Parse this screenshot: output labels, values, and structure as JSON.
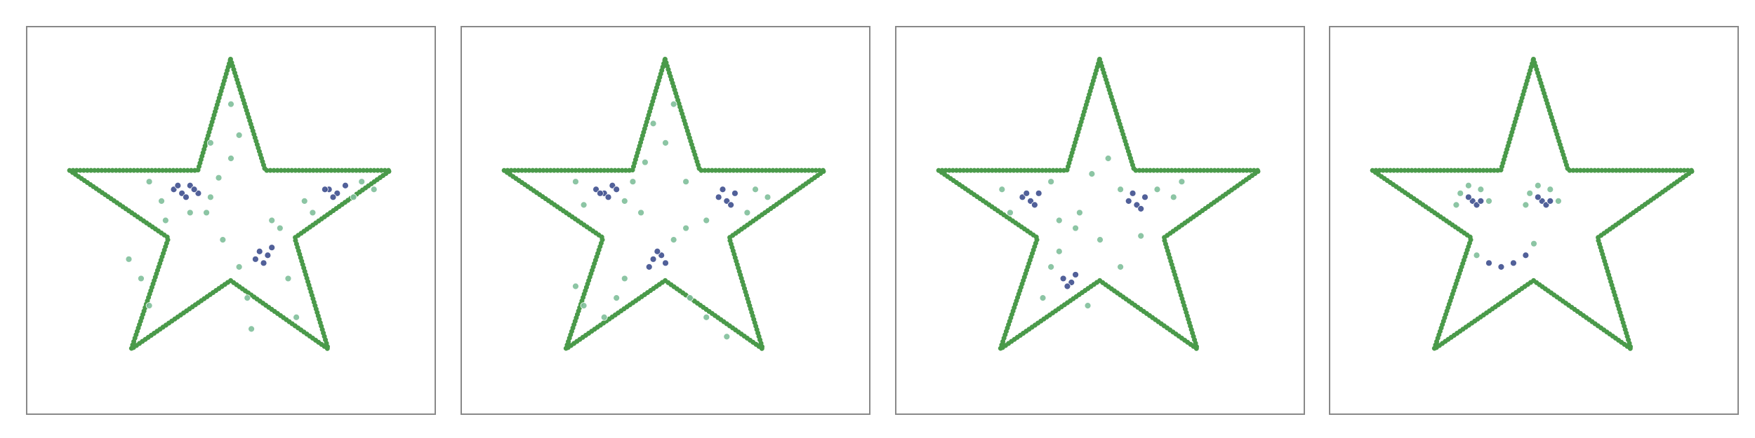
{
  "chart_data": [
    {
      "type": "scatter",
      "xlim": [
        0,
        100
      ],
      "ylim": [
        0,
        100
      ],
      "outline": {
        "color": "#4a9a4a",
        "x": [
          49.9,
          58.4,
          89,
          65.6,
          73.8,
          49.9,
          25.6,
          34.7,
          10.5,
          41.9
        ],
        "y": [
          91.6,
          62.9,
          62.9,
          45.5,
          16.8,
          34.5,
          16.8,
          45.5,
          62.9,
          62.9
        ]
      },
      "series": [
        {
          "color": "#7fbf9a",
          "x": [
            30,
            33,
            45,
            47,
            44,
            34,
            50,
            52,
            68,
            82,
            85,
            70,
            80,
            62,
            64,
            52,
            54,
            48,
            55,
            30,
            28,
            25,
            66,
            60,
            45,
            40,
            50
          ],
          "y": [
            60,
            55,
            56,
            61,
            52,
            50,
            66,
            72,
            55,
            60,
            58,
            52,
            56,
            48,
            35,
            38,
            30,
            45,
            22,
            28,
            35,
            40,
            25,
            50,
            70,
            52,
            80
          ]
        },
        {
          "color": "#3e4f8e",
          "x": [
            36,
            38,
            40,
            42,
            39,
            37,
            41,
            74,
            76,
            78,
            75,
            73,
            57,
            59,
            56,
            60,
            58
          ],
          "y": [
            58,
            57,
            59,
            57,
            56,
            59,
            58,
            58,
            57,
            59,
            56,
            58,
            42,
            41,
            40,
            43,
            39
          ]
        }
      ]
    },
    {
      "type": "scatter",
      "xlim": [
        0,
        100
      ],
      "ylim": [
        0,
        100
      ],
      "outline": {
        "color": "#4a9a4a",
        "x": [
          49.9,
          58.4,
          89,
          65.6,
          73.8,
          49.9,
          25.6,
          34.7,
          10.5,
          41.9
        ],
        "y": [
          91.6,
          62.9,
          62.9,
          45.5,
          16.8,
          34.5,
          16.8,
          45.5,
          62.9,
          62.9
        ]
      },
      "series": [
        {
          "color": "#7fbf9a",
          "x": [
            28,
            30,
            40,
            42,
            44,
            45,
            50,
            52,
            55,
            72,
            75,
            60,
            70,
            56,
            40,
            38,
            35,
            30,
            28,
            52,
            60,
            65,
            55,
            47
          ],
          "y": [
            60,
            54,
            55,
            60,
            52,
            65,
            70,
            80,
            60,
            58,
            56,
            50,
            52,
            30,
            35,
            30,
            25,
            28,
            33,
            45,
            25,
            20,
            48,
            75
          ]
        },
        {
          "color": "#3e4f8e",
          "x": [
            33,
            35,
            37,
            36,
            34,
            38,
            63,
            65,
            67,
            64,
            66,
            47,
            49,
            50,
            48,
            46
          ],
          "y": [
            58,
            57,
            59,
            56,
            57,
            58,
            56,
            55,
            57,
            58,
            54,
            40,
            41,
            39,
            42,
            38
          ]
        }
      ]
    },
    {
      "type": "scatter",
      "xlim": [
        0,
        100
      ],
      "ylim": [
        0,
        100
      ],
      "outline": {
        "color": "#4a9a4a",
        "x": [
          49.9,
          58.4,
          89,
          65.6,
          73.8,
          49.9,
          25.6,
          34.7,
          10.5,
          41.9
        ],
        "y": [
          91.6,
          62.9,
          62.9,
          45.5,
          16.8,
          34.5,
          16.8,
          45.5,
          62.9,
          62.9
        ]
      },
      "series": [
        {
          "color": "#7fbf9a",
          "x": [
            26,
            28,
            38,
            40,
            45,
            48,
            52,
            55,
            64,
            68,
            70,
            50,
            36,
            38,
            47,
            55,
            40,
            60,
            44
          ],
          "y": [
            58,
            52,
            60,
            50,
            52,
            62,
            66,
            58,
            58,
            56,
            60,
            45,
            30,
            38,
            28,
            38,
            42,
            46,
            48
          ]
        },
        {
          "color": "#3e4f8e",
          "x": [
            31,
            33,
            35,
            34,
            32,
            57,
            59,
            61,
            58,
            60,
            41,
            43,
            44,
            42
          ],
          "y": [
            56,
            55,
            57,
            54,
            57,
            55,
            54,
            56,
            57,
            53,
            35,
            34,
            36,
            33
          ]
        }
      ]
    },
    {
      "type": "scatter",
      "xlim": [
        0,
        100
      ],
      "ylim": [
        0,
        100
      ],
      "outline": {
        "color": "#4a9a4a",
        "x": [
          49.9,
          58.4,
          89,
          65.6,
          73.8,
          49.9,
          25.6,
          34.7,
          10.5,
          41.9
        ],
        "y": [
          91.6,
          62.9,
          62.9,
          45.5,
          16.8,
          34.5,
          16.8,
          45.5,
          62.9,
          62.9
        ]
      },
      "series": [
        {
          "color": "#7fbf9a",
          "x": [
            31,
            32,
            34,
            37,
            39,
            48,
            49,
            51,
            54,
            56,
            36,
            50
          ],
          "y": [
            54,
            57,
            59,
            58,
            55,
            54,
            57,
            59,
            58,
            55,
            41,
            44
          ]
        },
        {
          "color": "#3e4f8e",
          "x": [
            35,
            36,
            34,
            37,
            52,
            53,
            51,
            54,
            39,
            42,
            45,
            48
          ],
          "y": [
            55,
            54,
            56,
            55,
            55,
            54,
            56,
            55,
            39,
            38,
            39,
            41
          ]
        }
      ]
    }
  ]
}
